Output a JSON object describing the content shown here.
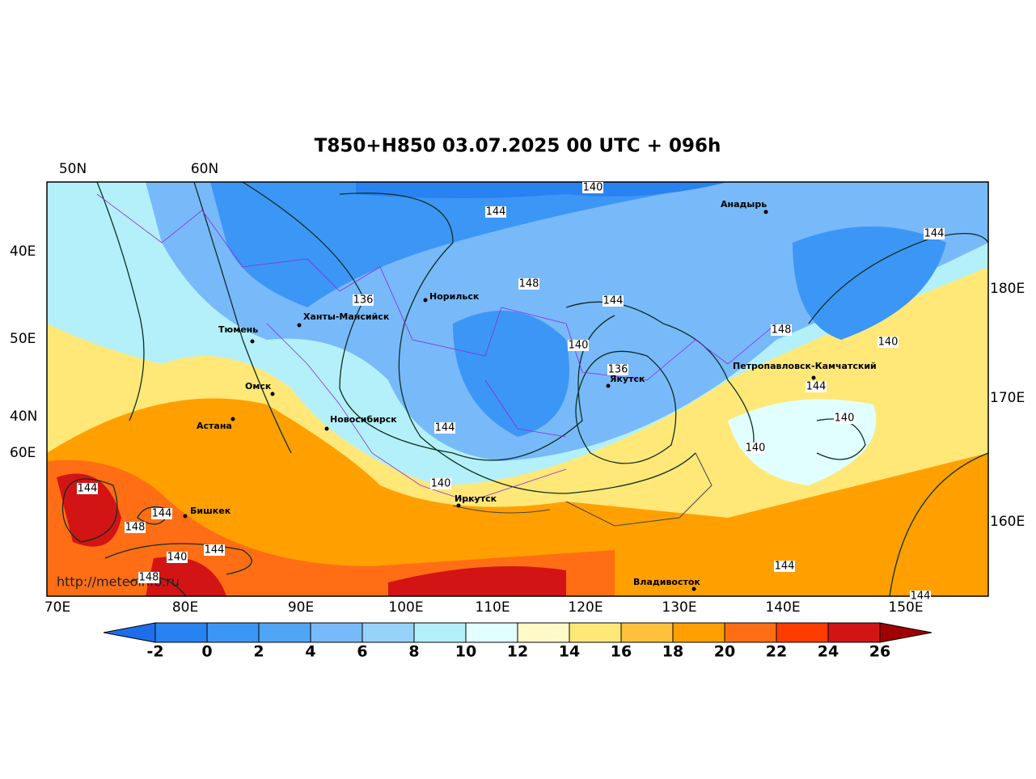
{
  "title": "T850+H850 03.07.2025 00 UTC + 096h",
  "top_labels": [
    "50N",
    "60N"
  ],
  "left_labels": [
    "40E",
    "50E",
    "40N",
    "60E"
  ],
  "right_labels": [
    "180E",
    "170E",
    "160E"
  ],
  "bottom_labels": [
    "70E",
    "80E",
    "90E",
    "100E",
    "110E",
    "120E",
    "130E",
    "140E",
    "150E"
  ],
  "cities": [
    "Анадырь",
    "Норильск",
    "Ханты-Мансийск",
    "Тюмень",
    "Омск",
    "Астана",
    "Новосибирск",
    "Якутск",
    "Петропавловск-Камчатский",
    "Иркутск",
    "Бишкек",
    "Владивосток"
  ],
  "contour_labels": [
    140,
    144,
    144,
    148,
    136,
    144,
    148,
    140,
    140,
    136,
    144,
    140,
    144,
    140,
    140,
    144,
    144,
    148,
    140,
    144,
    148,
    144,
    144
  ],
  "watermark": "http://meteoinfo.ru",
  "colorbar": {
    "ticks": [
      -2,
      0,
      2,
      4,
      6,
      8,
      10,
      12,
      14,
      16,
      18,
      20,
      22,
      24,
      26
    ],
    "colors": [
      "#1e6eeb",
      "#2882f0",
      "#3c96f5",
      "#50a5f5",
      "#78b9fa",
      "#96d2fa",
      "#b4f0fa",
      "#e1ffff",
      "#fffac8",
      "#ffe878",
      "#ffc03c",
      "#ffa000",
      "#ff6e14",
      "#ff3c00",
      "#d21414",
      "#a00000"
    ]
  }
}
